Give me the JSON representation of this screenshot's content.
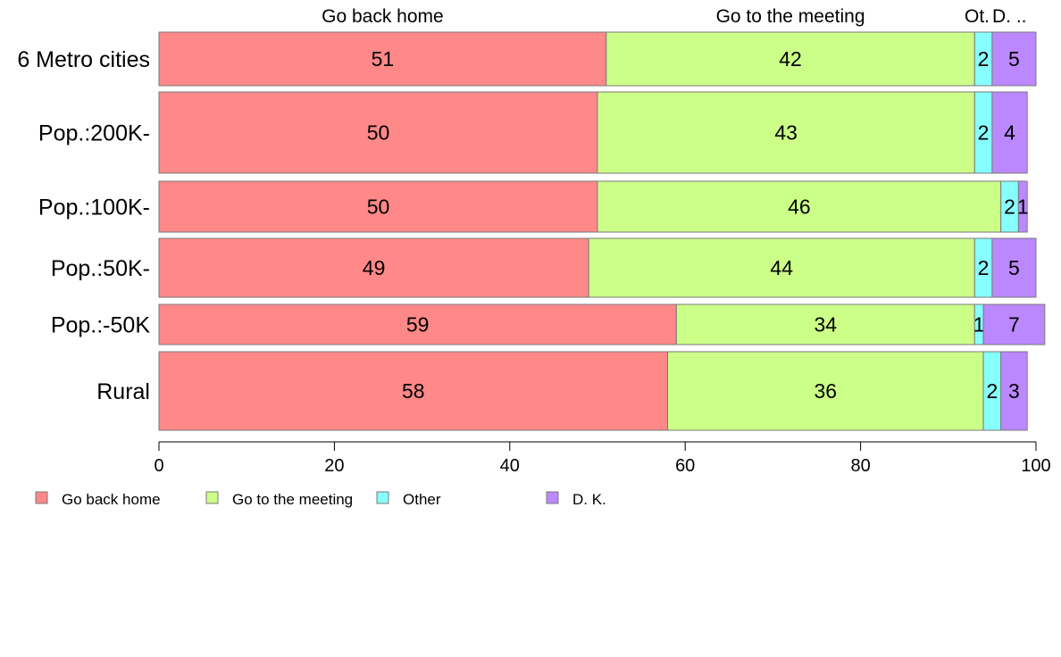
{
  "chart_data": {
    "type": "bar",
    "orientation": "horizontal",
    "stacked": true,
    "categories": [
      "6 Metro cities",
      "Pop.:200K-",
      "Pop.:100K-",
      "Pop.:50K-",
      "Pop.:-50K",
      "Rural"
    ],
    "series": [
      {
        "name": "Go back home",
        "color": "#ff8888",
        "values": [
          51,
          50,
          50,
          49,
          59,
          58
        ],
        "labels": [
          "51",
          "50",
          "50",
          "49",
          "59",
          "58"
        ]
      },
      {
        "name": "Go to the meeting",
        "color": "#ccff88",
        "values": [
          42,
          43,
          46,
          44,
          34,
          36
        ],
        "labels": [
          "42",
          "43",
          "46",
          "44",
          "34",
          "36"
        ]
      },
      {
        "name": "Other",
        "color": "#88ffff",
        "values": [
          2,
          2,
          2,
          2,
          1,
          2
        ],
        "labels": [
          "2",
          "2",
          "2",
          "2",
          "1",
          "2"
        ]
      },
      {
        "name": "D. K.",
        "color": "#bb88ff",
        "values": [
          5,
          4,
          1,
          5,
          7,
          3
        ],
        "labels": [
          "5",
          "4",
          "1",
          "5",
          "7",
          "3"
        ]
      }
    ],
    "top_labels": [
      "Go back home",
      "Go to the meeting",
      "Ot.",
      "D. .."
    ],
    "xlim": [
      0,
      100
    ],
    "xticks": [
      0,
      20,
      40,
      60,
      80,
      100
    ],
    "xtick_labels": [
      "0",
      "20",
      "40",
      "60",
      "80",
      "100"
    ],
    "grid": false,
    "legend_position": "bottom-left"
  }
}
